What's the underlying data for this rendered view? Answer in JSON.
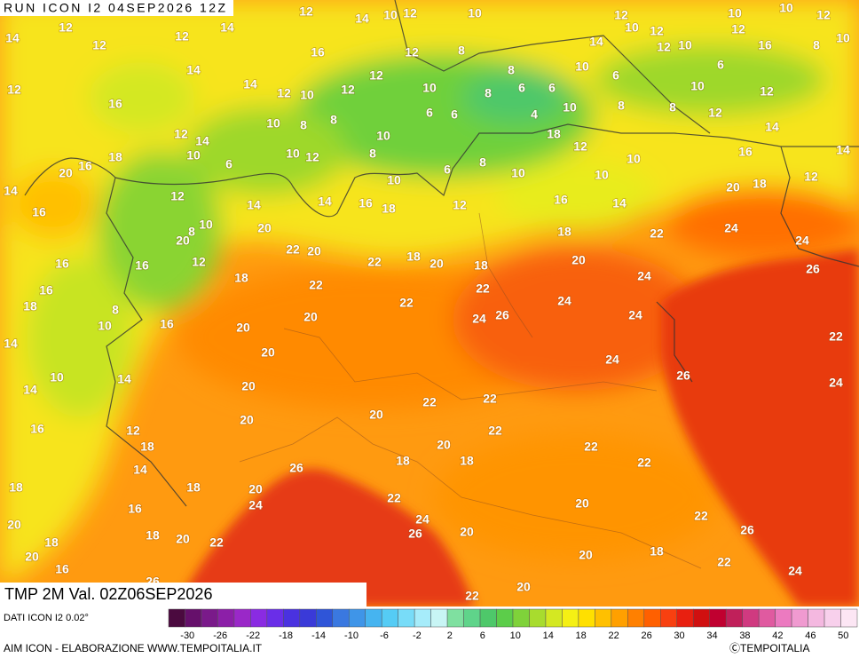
{
  "header": {
    "run": "RUN ICON I2 04SEP2026 12Z"
  },
  "map": {
    "title": "TMP 2M Val. 02Z06SEP2026",
    "labels": [
      12,
      14,
      10,
      12,
      10,
      12,
      10,
      12,
      14,
      12,
      12,
      12,
      14,
      16,
      12,
      8,
      8,
      10,
      14,
      10,
      12,
      12,
      10,
      10,
      12,
      16,
      8,
      10,
      12,
      16,
      14,
      14,
      12,
      10,
      12,
      12,
      10,
      8,
      6,
      6,
      6,
      10,
      6,
      12,
      12,
      14,
      10,
      10,
      8,
      8,
      10,
      6,
      6,
      4,
      10,
      8,
      8,
      12,
      14,
      18,
      20,
      16,
      14,
      6,
      12,
      10,
      12,
      8,
      6,
      8,
      10,
      18,
      12,
      10,
      16,
      14,
      16,
      10,
      14,
      14,
      10,
      16,
      18,
      12,
      16,
      10,
      14,
      20,
      18,
      12,
      20,
      22,
      20,
      22,
      18,
      20,
      18,
      24,
      22,
      18,
      20,
      24,
      26,
      24,
      22,
      22,
      22,
      24,
      24,
      26,
      24,
      20,
      20,
      20,
      24,
      26,
      22,
      24,
      20,
      22,
      22,
      20,
      20,
      22,
      20,
      22,
      18,
      18,
      22,
      26,
      20,
      24,
      22,
      20,
      24,
      26,
      20,
      22,
      26,
      20,
      22,
      20,
      18,
      22,
      24,
      20,
      22,
      16,
      16,
      18,
      8,
      10,
      16,
      14,
      14,
      10,
      14,
      16,
      12,
      18,
      14,
      18,
      18,
      16,
      18,
      20,
      18,
      20,
      16,
      16,
      12,
      18,
      20,
      8,
      26
    ]
  },
  "legend": {
    "source": "DATI ICON I2 0.02°",
    "ticks": [
      -30,
      -26,
      -22,
      -18,
      -14,
      -10,
      -6,
      -2,
      2,
      6,
      10,
      14,
      18,
      22,
      26,
      30,
      34,
      38,
      42,
      46,
      50
    ],
    "colors": [
      "#4b0a3f",
      "#66106b",
      "#7a1a8a",
      "#8c1fa8",
      "#9a28c8",
      "#8a2be2",
      "#6a2ee8",
      "#4a32e0",
      "#3a3ad8",
      "#2f55d8",
      "#3a78e0",
      "#3f95e8",
      "#46b4f0",
      "#55ccf5",
      "#78dcf8",
      "#a6ecfa",
      "#c8f5f5",
      "#7fe0a0",
      "#5fd48a",
      "#4ec86a",
      "#5ccd4a",
      "#7fd23a",
      "#a8dc2e",
      "#d4e822",
      "#f5f014",
      "#ffe000",
      "#ffc000",
      "#ffa000",
      "#ff8000",
      "#ff6000",
      "#f84010",
      "#e82010",
      "#d01010",
      "#c00030",
      "#c0205a",
      "#d03a80",
      "#e05aa0",
      "#ec7ac0",
      "#f09ad0",
      "#f4b8e0",
      "#f8d0ec",
      "#fce6f4"
    ]
  },
  "footer": {
    "credit": "AIM ICON - ELABORAZIONE WWW.TEMPOITALIA.IT",
    "copyright": "ⒸTEMPOITALIA"
  }
}
